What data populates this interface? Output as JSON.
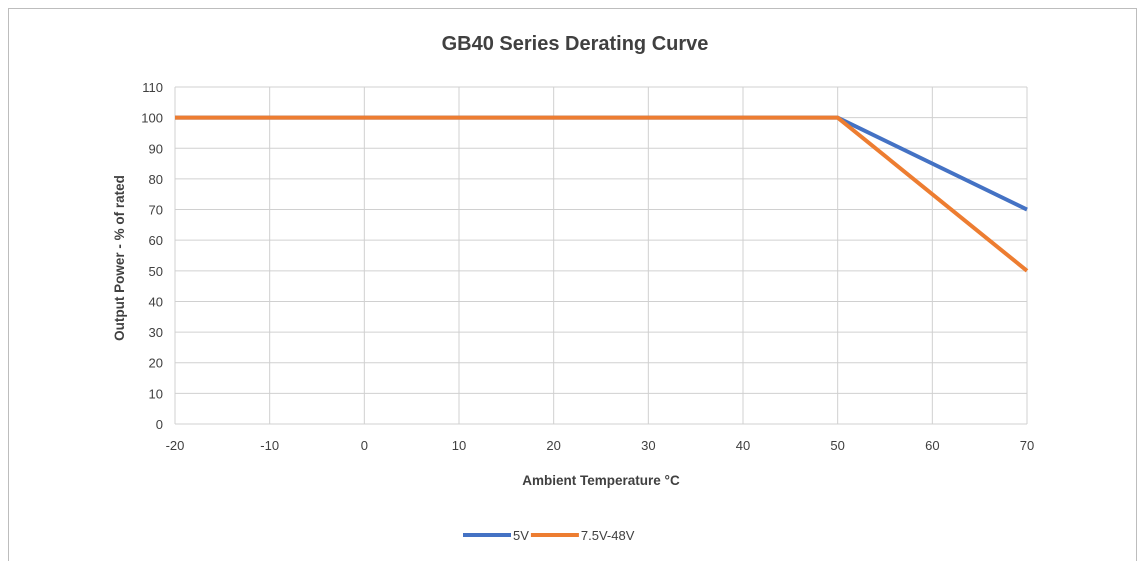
{
  "chart_data": {
    "type": "line",
    "title": "GB40 Series Derating Curve",
    "xlabel": "Ambient Temperature °C",
    "ylabel": "Output Power - % of rated",
    "xlim": [
      -20,
      70
    ],
    "ylim": [
      0,
      110
    ],
    "xticks": [
      -20,
      -10,
      0,
      10,
      20,
      30,
      40,
      50,
      60,
      70
    ],
    "yticks": [
      0,
      10,
      20,
      30,
      40,
      50,
      60,
      70,
      80,
      90,
      100,
      110
    ],
    "grid": true,
    "legend_position": "bottom",
    "series": [
      {
        "name": "5V",
        "color": "#4472c4",
        "x": [
          -20,
          50,
          70
        ],
        "y": [
          100,
          100,
          70
        ]
      },
      {
        "name": "7.5V-48V",
        "color": "#ed7d31",
        "x": [
          -20,
          50,
          70
        ],
        "y": [
          100,
          100,
          50
        ]
      }
    ]
  }
}
